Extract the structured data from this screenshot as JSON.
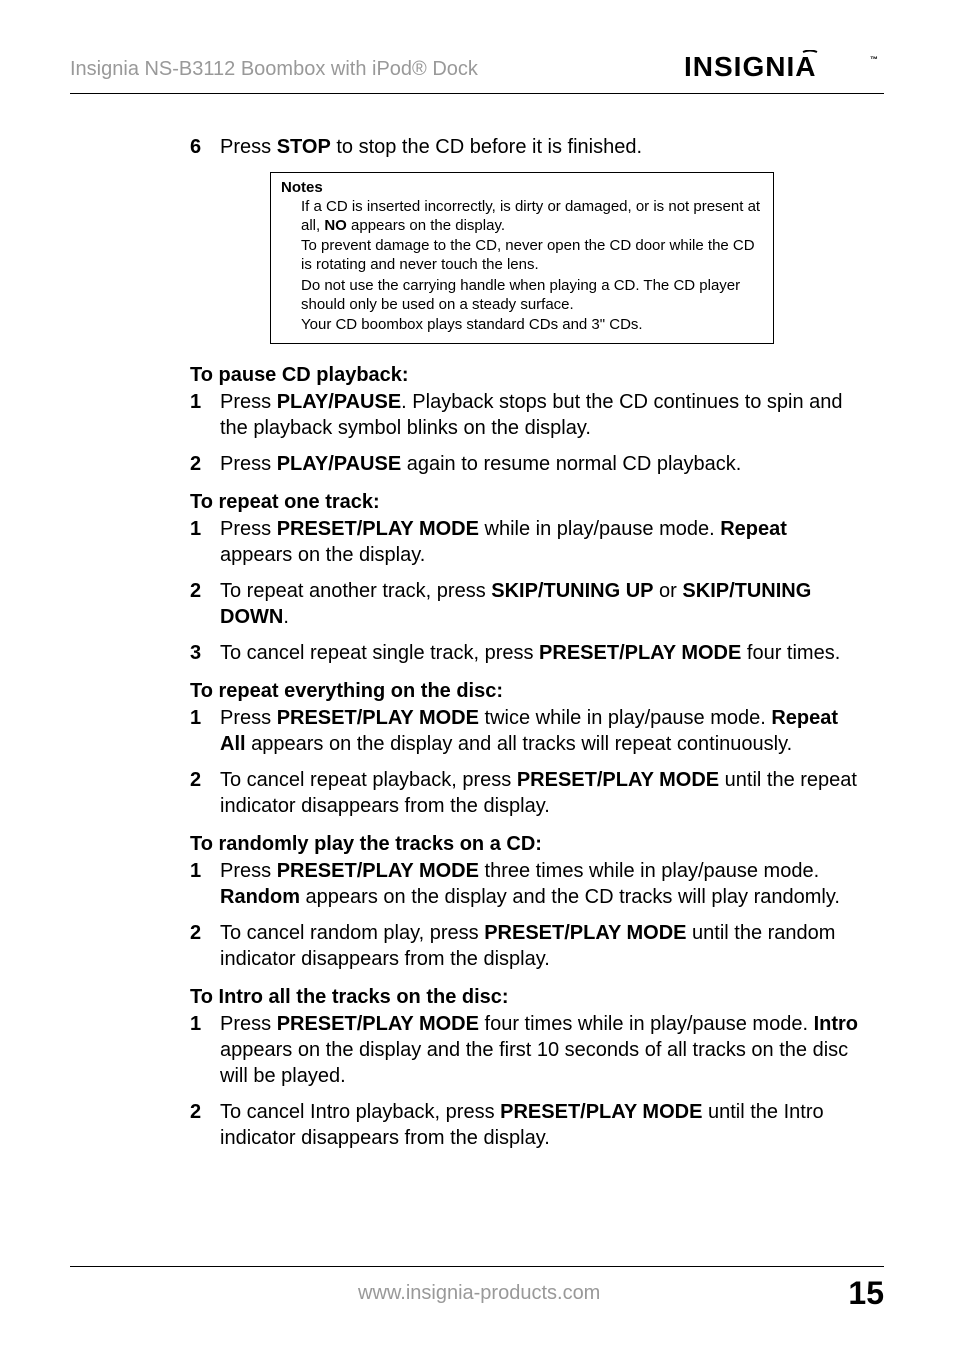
{
  "header": {
    "title": "Insignia NS-B3112 Boombox with iPod® Dock",
    "logo_text": "INSIGNIA"
  },
  "sections": [
    {
      "type": "step",
      "num": "6",
      "html": "Press <b>STOP</b> to stop the CD before it is finished."
    },
    {
      "type": "notes",
      "title": "Notes",
      "items": [
        "If a CD is inserted incorrectly, is dirty or damaged, or is not present at all, <b>NO</b> appears on the display.",
        "To prevent damage to the CD, never open the CD door while the CD is rotating and never touch the lens.",
        "Do not use the carrying handle when playing a CD. The CD player should only be used on a steady surface.",
        "Your CD boombox plays standard CDs and 3\" CDs."
      ]
    },
    {
      "type": "heading",
      "text": "To pause CD playback:"
    },
    {
      "type": "step",
      "num": "1",
      "html": "Press <b>PLAY/PAUSE</b>. Playback stops but the CD continues to spin and the playback symbol blinks on the display."
    },
    {
      "type": "step",
      "num": "2",
      "html": "Press <b>PLAY/PAUSE</b> again to resume normal CD playback."
    },
    {
      "type": "heading",
      "text": "To repeat one track:"
    },
    {
      "type": "step",
      "num": "1",
      "html": "Press <b>PRESET/PLAY MODE</b> while in play/pause mode. <b>Repeat</b> appears on the display."
    },
    {
      "type": "step",
      "num": "2",
      "html": "To repeat another track, press <b>SKIP/TUNING UP</b> or <b>SKIP/TUNING DOWN</b>."
    },
    {
      "type": "step",
      "num": "3",
      "html": "To cancel repeat single track, press <b>PRESET/PLAY MODE</b> four times."
    },
    {
      "type": "heading",
      "text": "To repeat everything on the disc:"
    },
    {
      "type": "step",
      "num": "1",
      "html": "Press <b>PRESET/PLAY MODE</b> twice while in play/pause mode. <b>Repeat All</b> appears on the display and all tracks will repeat continuously."
    },
    {
      "type": "step",
      "num": "2",
      "html": "To cancel repeat playback, press <b>PRESET/PLAY MODE</b> until the repeat indicator disappears from the display."
    },
    {
      "type": "heading",
      "text": "To randomly play the tracks on a CD:"
    },
    {
      "type": "step",
      "num": "1",
      "html": "Press <b>PRESET/PLAY MODE</b> three times while in play/pause mode. <b>Random</b> appears on the display and the CD tracks will play randomly."
    },
    {
      "type": "step",
      "num": "2",
      "html": "To cancel random play, press <b>PRESET/PLAY MODE</b> until the random indicator disappears from the display."
    },
    {
      "type": "heading",
      "text": "To Intro all the tracks on the disc:"
    },
    {
      "type": "step",
      "num": "1",
      "html": "Press <b>PRESET/PLAY MODE</b> four times while in play/pause mode. <b>Intro</b> appears on the display and the first 10 seconds of all tracks on the disc will be played."
    },
    {
      "type": "step",
      "num": "2",
      "html": "To cancel Intro playback, press <b>PRESET/PLAY MODE</b> until the Intro indicator disappears from the display."
    }
  ],
  "footer": {
    "url": "www.insignia-products.com",
    "page": "15"
  },
  "colors": {
    "grey_text": "#999999",
    "black": "#000000",
    "background": "#ffffff"
  }
}
